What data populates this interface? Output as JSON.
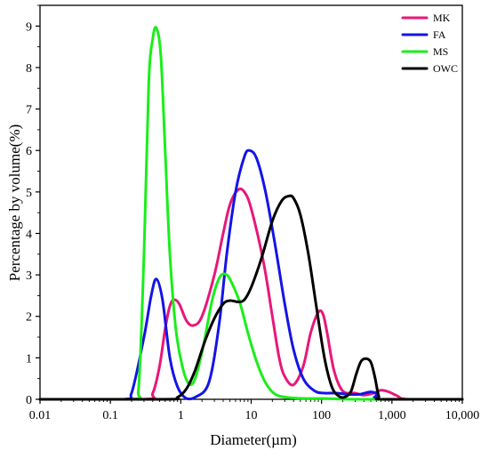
{
  "chart_data": {
    "type": "line",
    "xlabel": "Diameter(µm)",
    "ylabel": "Percentage by volume(%)",
    "x_scale": "log",
    "xlim": [
      0.01,
      10000
    ],
    "ylim": [
      0,
      9.5
    ],
    "x_ticks": [
      {
        "value": 0.01,
        "label": "0.01"
      },
      {
        "value": 0.1,
        "label": "0.1"
      },
      {
        "value": 1,
        "label": "1"
      },
      {
        "value": 10,
        "label": "10"
      },
      {
        "value": 100,
        "label": "100"
      },
      {
        "value": 1000,
        "label": "1,000"
      },
      {
        "value": 10000,
        "label": "10,000"
      }
    ],
    "y_ticks": [
      0,
      1,
      2,
      3,
      4,
      5,
      6,
      7,
      8,
      9
    ],
    "grid": false,
    "legend_position": "top-right",
    "series": [
      {
        "name": "MK",
        "color": "#e8177a",
        "points": [
          [
            0.01,
            0
          ],
          [
            0.3,
            0
          ],
          [
            0.4,
            0.15
          ],
          [
            0.5,
            0.8
          ],
          [
            0.6,
            1.7
          ],
          [
            0.7,
            2.25
          ],
          [
            0.8,
            2.4
          ],
          [
            0.95,
            2.3
          ],
          [
            1.2,
            1.9
          ],
          [
            1.5,
            1.78
          ],
          [
            2,
            2.0
          ],
          [
            3,
            3.0
          ],
          [
            4,
            4.0
          ],
          [
            5,
            4.7
          ],
          [
            6.5,
            5.05
          ],
          [
            8,
            5.0
          ],
          [
            10,
            4.6
          ],
          [
            15,
            3.3
          ],
          [
            20,
            2.0
          ],
          [
            25,
            1.0
          ],
          [
            30,
            0.55
          ],
          [
            40,
            0.35
          ],
          [
            55,
            0.8
          ],
          [
            70,
            1.6
          ],
          [
            90,
            2.1
          ],
          [
            105,
            2.05
          ],
          [
            120,
            1.6
          ],
          [
            150,
            0.7
          ],
          [
            200,
            0.2
          ],
          [
            300,
            0.15
          ],
          [
            400,
            0.1
          ],
          [
            550,
            0.15
          ],
          [
            700,
            0.22
          ],
          [
            900,
            0.18
          ],
          [
            1200,
            0.08
          ],
          [
            1700,
            0
          ],
          [
            10000,
            0
          ]
        ]
      },
      {
        "name": "FA",
        "color": "#1414e6",
        "points": [
          [
            0.01,
            0
          ],
          [
            0.15,
            0
          ],
          [
            0.2,
            0.15
          ],
          [
            0.3,
            1.5
          ],
          [
            0.38,
            2.5
          ],
          [
            0.45,
            2.9
          ],
          [
            0.55,
            2.4
          ],
          [
            0.7,
            1.0
          ],
          [
            0.9,
            0.3
          ],
          [
            1.2,
            0.02
          ],
          [
            1.6,
            0.05
          ],
          [
            2.5,
            0.4
          ],
          [
            3.5,
            1.8
          ],
          [
            4.5,
            3.5
          ],
          [
            6,
            5.0
          ],
          [
            8,
            5.85
          ],
          [
            9.5,
            6.0
          ],
          [
            12,
            5.8
          ],
          [
            16,
            5.0
          ],
          [
            22,
            3.7
          ],
          [
            30,
            2.3
          ],
          [
            40,
            1.2
          ],
          [
            55,
            0.5
          ],
          [
            80,
            0.2
          ],
          [
            110,
            0.15
          ],
          [
            160,
            0.15
          ],
          [
            250,
            0.12
          ],
          [
            350,
            0.12
          ],
          [
            500,
            0.18
          ],
          [
            620,
            0.12
          ],
          [
            700,
            0
          ],
          [
            10000,
            0
          ]
        ]
      },
      {
        "name": "MS",
        "color": "#1aee1a",
        "points": [
          [
            0.01,
            0
          ],
          [
            0.2,
            0
          ],
          [
            0.25,
            0.2
          ],
          [
            0.3,
            3.5
          ],
          [
            0.35,
            7.6
          ],
          [
            0.4,
            8.7
          ],
          [
            0.45,
            8.95
          ],
          [
            0.52,
            8.3
          ],
          [
            0.6,
            6.0
          ],
          [
            0.7,
            3.5
          ],
          [
            0.85,
            1.7
          ],
          [
            1.05,
            0.8
          ],
          [
            1.3,
            0.38
          ],
          [
            1.6,
            0.5
          ],
          [
            2.1,
            1.3
          ],
          [
            2.8,
            2.4
          ],
          [
            3.6,
            2.95
          ],
          [
            4.5,
            3.0
          ],
          [
            5.5,
            2.75
          ],
          [
            7,
            2.3
          ],
          [
            9,
            1.6
          ],
          [
            12,
            0.9
          ],
          [
            16,
            0.4
          ],
          [
            22,
            0.12
          ],
          [
            35,
            0.04
          ],
          [
            60,
            0.02
          ],
          [
            120,
            0.02
          ],
          [
            300,
            0
          ],
          [
            10000,
            0
          ]
        ]
      },
      {
        "name": "OWC",
        "color": "#000000",
        "points": [
          [
            0.01,
            0
          ],
          [
            0.6,
            0
          ],
          [
            0.9,
            0.05
          ],
          [
            1.2,
            0.25
          ],
          [
            1.6,
            0.7
          ],
          [
            2.2,
            1.4
          ],
          [
            3,
            1.95
          ],
          [
            4,
            2.3
          ],
          [
            5,
            2.38
          ],
          [
            6.5,
            2.35
          ],
          [
            8,
            2.4
          ],
          [
            10,
            2.7
          ],
          [
            14,
            3.4
          ],
          [
            20,
            4.3
          ],
          [
            27,
            4.78
          ],
          [
            34,
            4.9
          ],
          [
            40,
            4.85
          ],
          [
            50,
            4.45
          ],
          [
            65,
            3.5
          ],
          [
            85,
            2.2
          ],
          [
            110,
            1.0
          ],
          [
            140,
            0.3
          ],
          [
            175,
            0.08
          ],
          [
            210,
            0.05
          ],
          [
            260,
            0.18
          ],
          [
            310,
            0.6
          ],
          [
            360,
            0.9
          ],
          [
            420,
            0.98
          ],
          [
            500,
            0.9
          ],
          [
            570,
            0.55
          ],
          [
            650,
            0.08
          ],
          [
            750,
            0
          ],
          [
            10000,
            0
          ]
        ]
      }
    ]
  }
}
